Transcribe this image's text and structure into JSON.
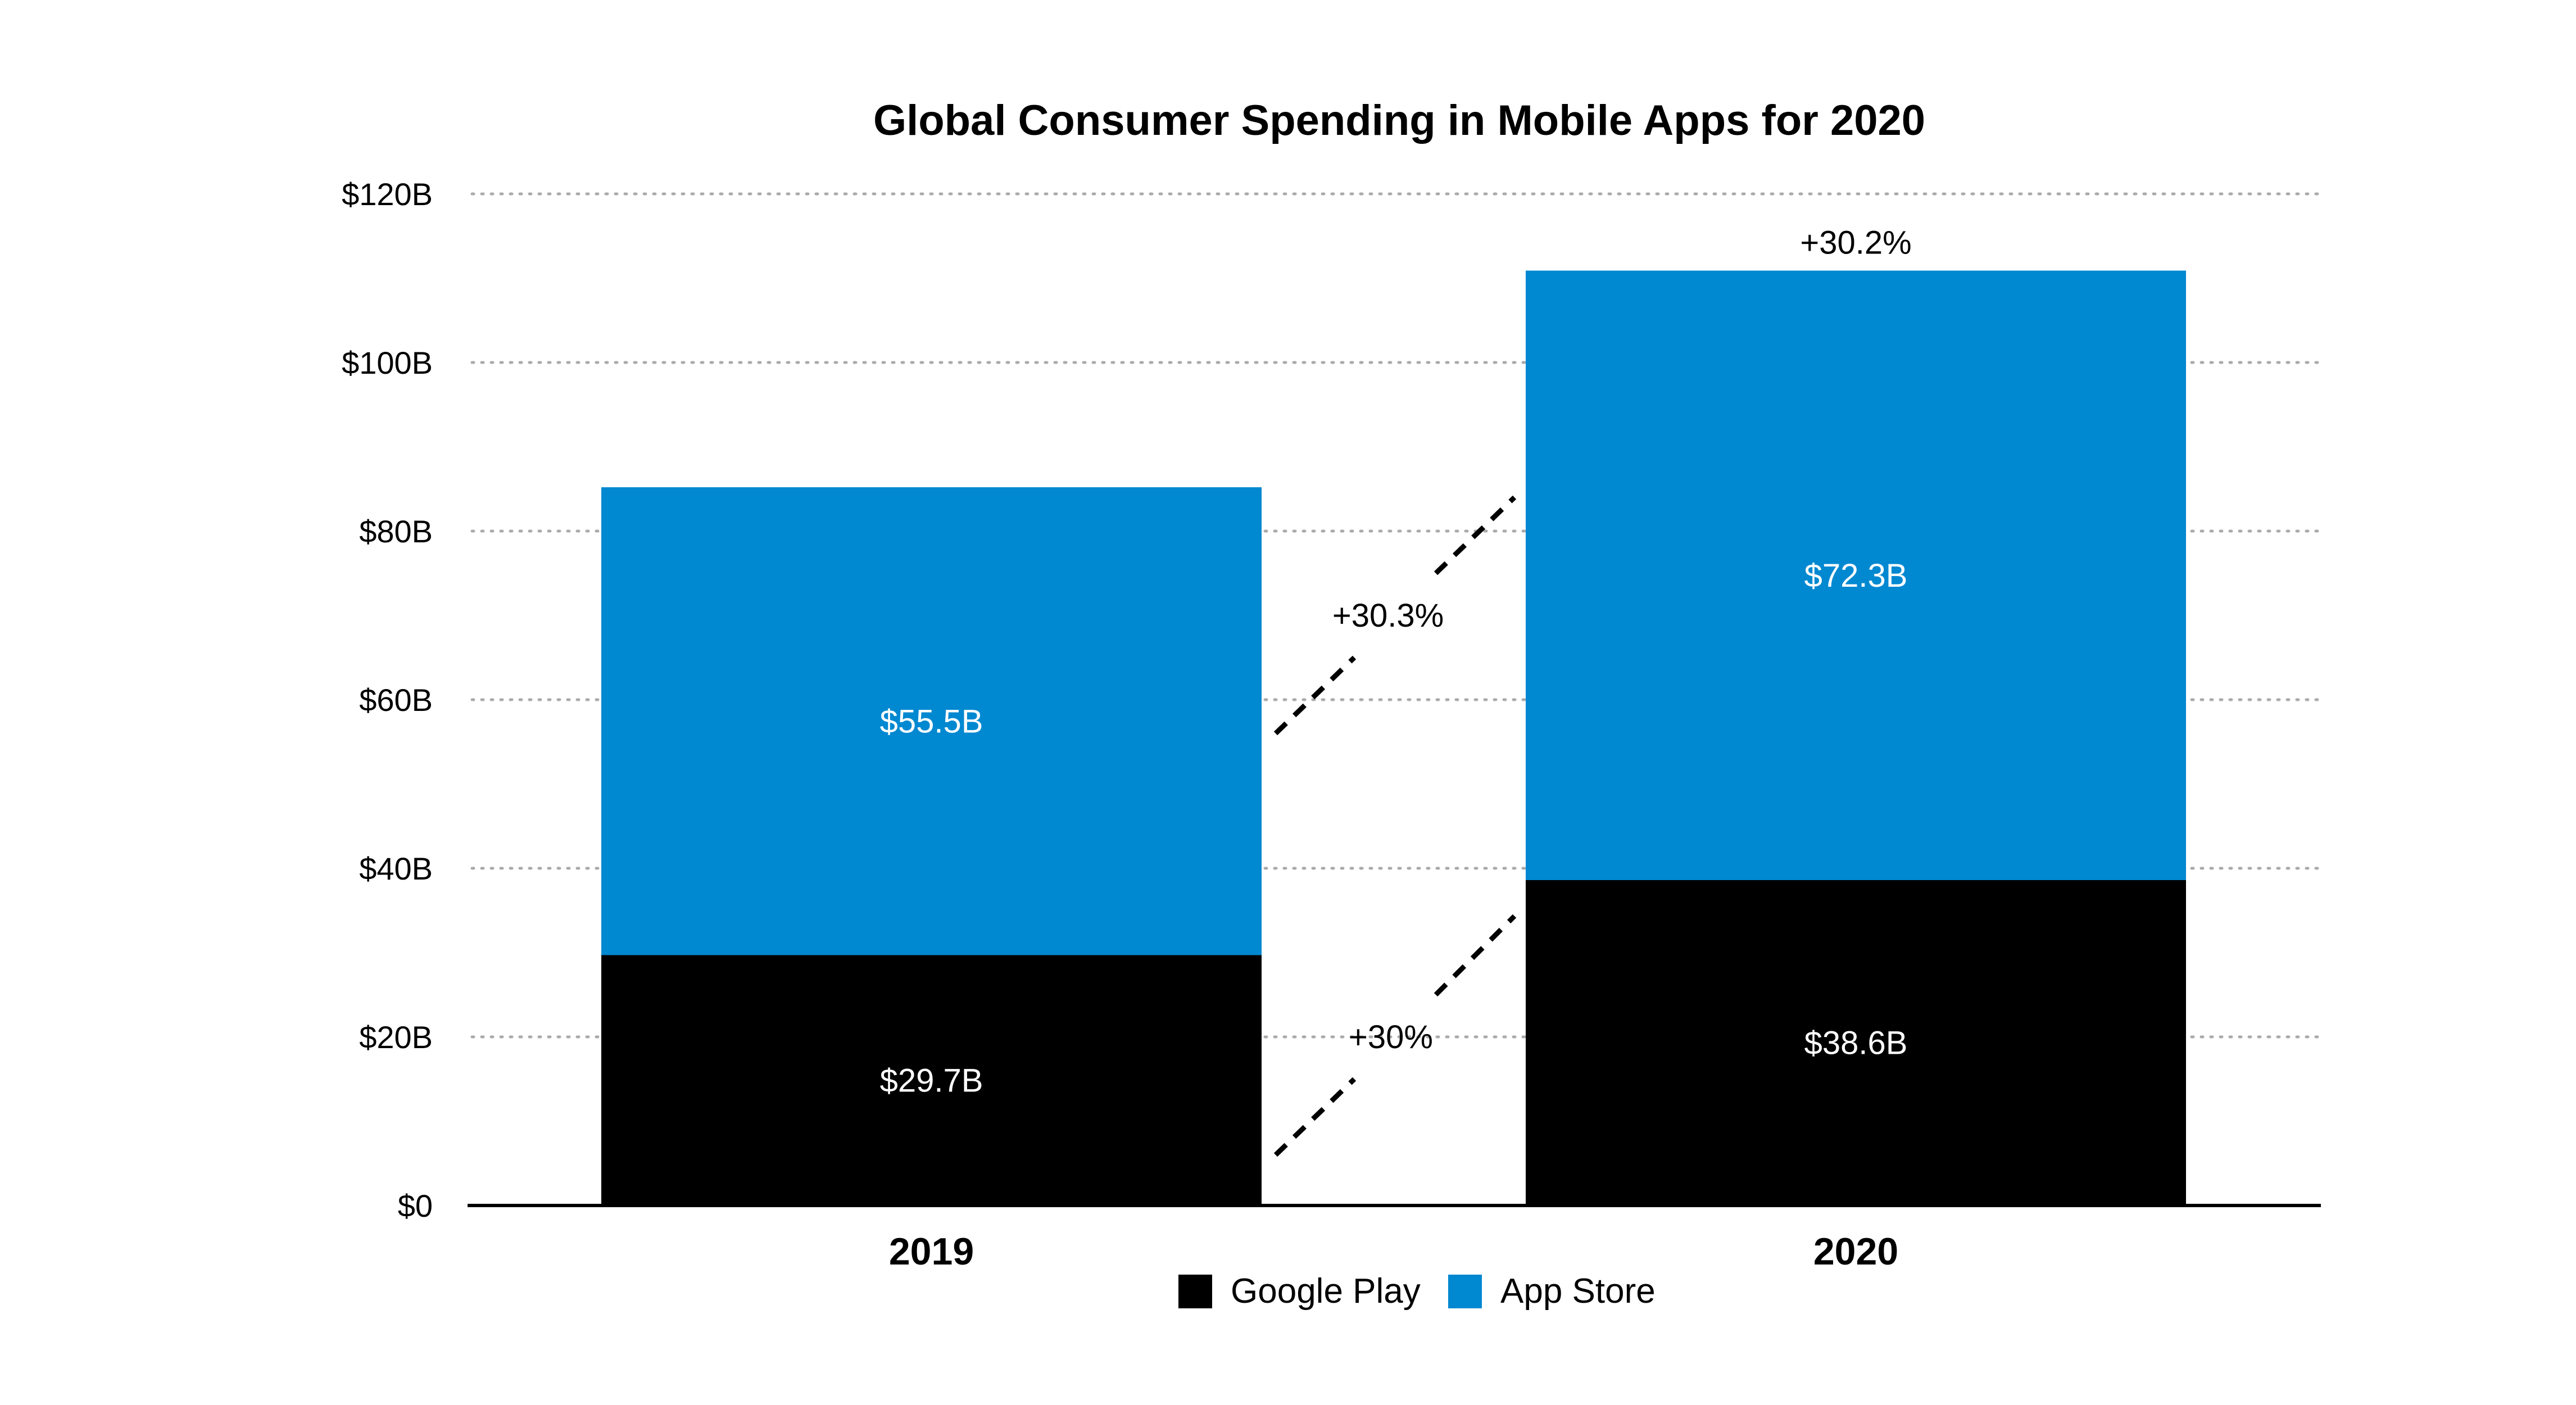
{
  "chart_data": {
    "type": "bar",
    "stacked": true,
    "title": "Global Consumer Spending in Mobile Apps for 2020",
    "categories": [
      "2019",
      "2020"
    ],
    "series": [
      {
        "name": "Google Play",
        "color": "#000000",
        "values": [
          29.7,
          38.6
        ],
        "labels": [
          "$29.7B",
          "$38.6B"
        ]
      },
      {
        "name": "App Store",
        "color": "#0088D1",
        "values": [
          55.5,
          72.3
        ],
        "labels": [
          "$55.5B",
          "$72.3B"
        ]
      }
    ],
    "ylim": [
      0,
      120
    ],
    "yticks": [
      0,
      20,
      40,
      60,
      80,
      100,
      120
    ],
    "ytick_labels": [
      "$0",
      "$20B",
      "$40B",
      "$60B",
      "$80B",
      "$100B",
      "$120B"
    ],
    "grid": "horizontal dotted",
    "legend": {
      "placement": "bottom-center",
      "entries": [
        "Google Play",
        "App Store"
      ]
    },
    "annotations": {
      "total_growth": "+30.2%",
      "app_store_growth": "+30.3%",
      "google_play_growth": "+30%"
    }
  }
}
